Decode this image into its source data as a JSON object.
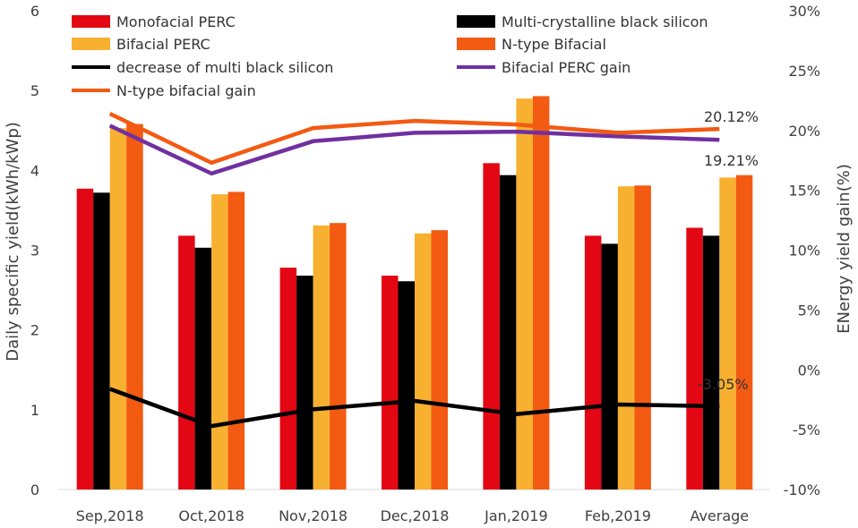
{
  "chart_data": {
    "type": "bar",
    "categories": [
      "Sep,2018",
      "Oct,2018",
      "Nov,2018",
      "Dec,2018",
      "Jan,2019",
      "Feb,2019",
      "Average"
    ],
    "ylabel_left": "Daily specific yield(kWh/kWp)",
    "ylabel_right": "ENergy yield  gain(%)",
    "ylim_left": [
      0,
      6
    ],
    "ylim_right": [
      -10,
      30
    ],
    "yticks_left": [
      "0",
      "1",
      "2",
      "3",
      "4",
      "5",
      "6"
    ],
    "yticks_right": [
      "-10%",
      "-5%",
      "0%",
      "5%",
      "10%",
      "15%",
      "20%",
      "25%",
      "30%"
    ],
    "grid": false,
    "legend_position": "top",
    "bar_series": [
      {
        "name": "Monofacial PERC",
        "color": "#e30613",
        "values": [
          3.77,
          3.18,
          2.78,
          2.68,
          4.09,
          3.18,
          3.28
        ]
      },
      {
        "name": "Multi-crystalline black silicon",
        "color": "#000000",
        "values": [
          3.72,
          3.03,
          2.68,
          2.61,
          3.94,
          3.08,
          3.18
        ]
      },
      {
        "name": "Bifacial PERC",
        "color": "#f7b030",
        "values": [
          4.53,
          3.7,
          3.31,
          3.21,
          4.9,
          3.8,
          3.91
        ]
      },
      {
        "name": "N-type Bifacial",
        "color": "#f35a12",
        "values": [
          4.58,
          3.73,
          3.34,
          3.25,
          4.93,
          3.81,
          3.94
        ]
      }
    ],
    "line_series": [
      {
        "name": "decrease of multi black silicon",
        "color": "#000000",
        "axis": "right",
        "values": [
          -1.6,
          -4.7,
          -3.3,
          -2.6,
          -3.7,
          -2.9,
          -3.05
        ]
      },
      {
        "name": "Bifacial PERC gain",
        "color": "#7030a0",
        "axis": "right",
        "values": [
          20.4,
          16.4,
          19.1,
          19.8,
          19.9,
          19.5,
          19.21
        ]
      },
      {
        "name": "N-type bifacial gain",
        "color": "#f35a12",
        "axis": "right",
        "values": [
          21.4,
          17.3,
          20.2,
          20.8,
          20.5,
          19.8,
          20.12
        ]
      }
    ],
    "annotations": [
      "20.12%",
      "19.21%",
      "-3.05%"
    ]
  }
}
